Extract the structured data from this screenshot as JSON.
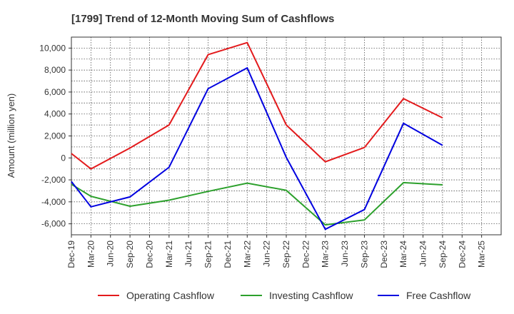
{
  "chart_data": {
    "type": "line",
    "title": "[1799]  Trend of 12-Month Moving Sum of Cashflows",
    "ylabel": "Amount (million yen)",
    "xlabel": "",
    "x": [
      "Dec-19",
      "Mar-20",
      "Jun-20",
      "Sep-20",
      "Dec-20",
      "Mar-21",
      "Jun-21",
      "Sep-21",
      "Dec-21",
      "Mar-22",
      "Jun-22",
      "Sep-22",
      "Dec-22",
      "Mar-23",
      "Jun-23",
      "Sep-23",
      "Dec-23",
      "Mar-24",
      "Jun-24",
      "Sep-24",
      "Dec-24",
      "Mar-25"
    ],
    "ylim": [
      -7000,
      11000
    ],
    "yticks": [
      10000,
      8000,
      6000,
      4000,
      2000,
      0,
      -2000,
      -4000,
      -6000
    ],
    "ytick_labels": [
      "10,000",
      "8,000",
      "6,000",
      "4,000",
      "2,000",
      "0",
      "-2,000",
      "-4,000",
      "-6,000"
    ],
    "grid": true,
    "legend_position": "bottom",
    "series": [
      {
        "name": "Operating Cashflow",
        "color": "#e31a1c",
        "values": [
          400,
          -1000,
          null,
          900,
          null,
          3000,
          null,
          9400,
          null,
          10500,
          null,
          3000,
          null,
          -350,
          null,
          950,
          null,
          5400,
          null,
          3650,
          null,
          null
        ]
      },
      {
        "name": "Investing Cashflow",
        "color": "#2ca02c",
        "values": [
          -2400,
          -3500,
          null,
          -4400,
          null,
          -3850,
          null,
          -3050,
          null,
          -2300,
          null,
          -2950,
          null,
          -6100,
          null,
          -5650,
          null,
          -2250,
          null,
          -2450,
          null,
          null
        ]
      },
      {
        "name": "Free Cashflow",
        "color": "#0000e0",
        "values": [
          -2150,
          -4450,
          null,
          -3550,
          null,
          -850,
          null,
          6300,
          null,
          8200,
          null,
          50,
          null,
          -6500,
          null,
          -4700,
          null,
          3150,
          null,
          1150,
          null,
          null
        ]
      }
    ]
  }
}
